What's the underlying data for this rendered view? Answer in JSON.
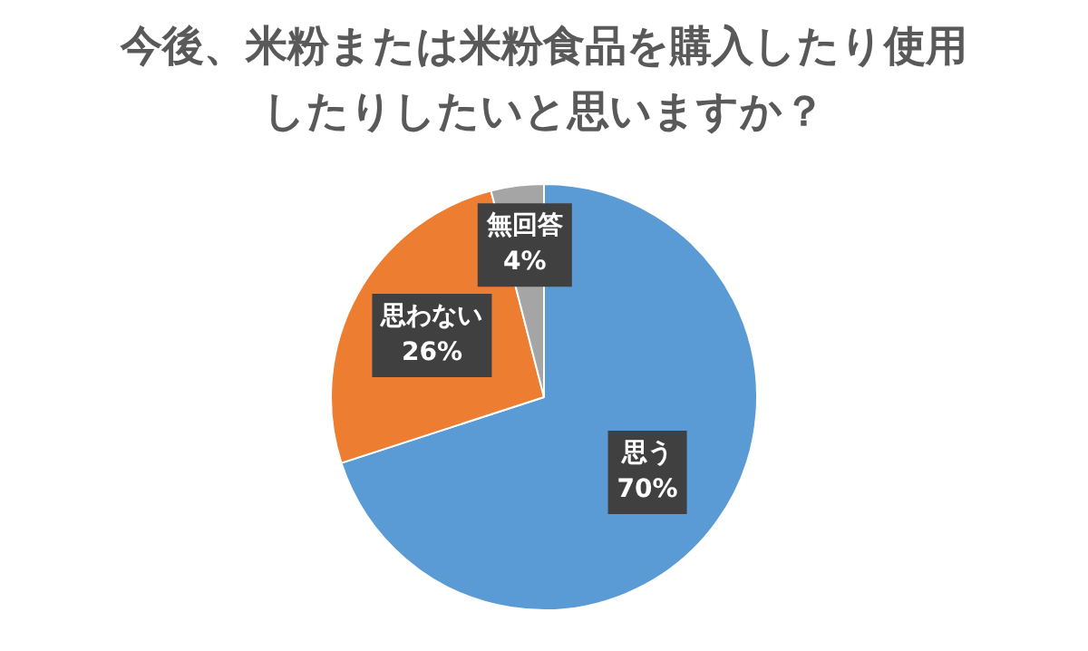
{
  "chart_data": {
    "type": "pie",
    "title": "今後、米粉または米粉食品を購入したり使用したりしたいと思いますか？",
    "categories": [
      "思う",
      "思わない",
      "無回答"
    ],
    "values": [
      70,
      26,
      4
    ],
    "colors": [
      "#5b9bd5",
      "#ed7d31",
      "#a5a5a5"
    ],
    "value_labels": [
      "70%",
      "26%",
      "4%"
    ],
    "legend": false
  }
}
